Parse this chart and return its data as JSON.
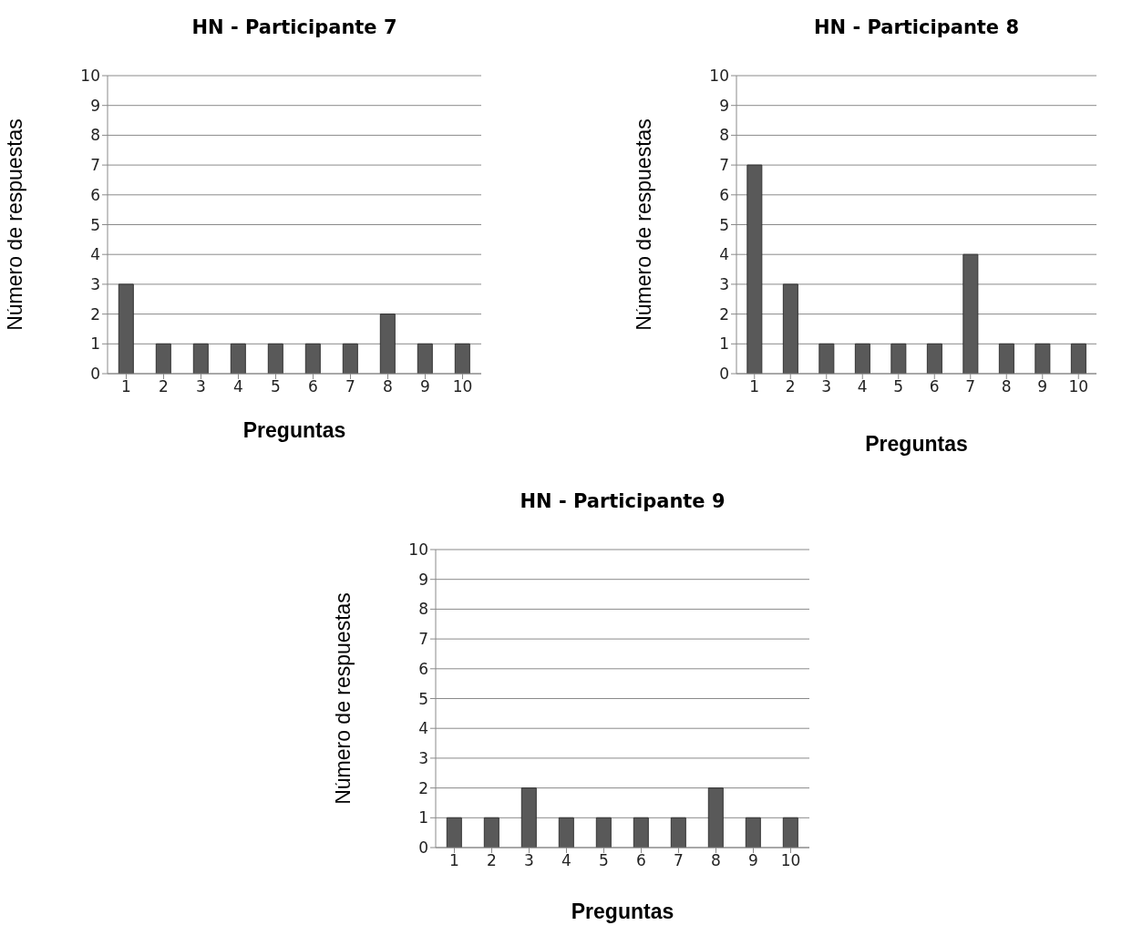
{
  "chart_data": [
    {
      "type": "bar",
      "title": "HN - Participante 7",
      "xlabel": "Preguntas",
      "ylabel": "Número de respuestas",
      "categories": [
        "1",
        "2",
        "3",
        "4",
        "5",
        "6",
        "7",
        "8",
        "9",
        "10"
      ],
      "values": [
        3,
        1,
        1,
        1,
        1,
        1,
        1,
        2,
        1,
        1
      ],
      "color": "#595959",
      "ylim": [
        0,
        10
      ],
      "yticks": [
        0,
        1,
        2,
        3,
        4,
        5,
        6,
        7,
        8,
        9,
        10
      ],
      "grid": "y"
    },
    {
      "type": "bar",
      "title": "HN - Participante 8",
      "xlabel": "Preguntas",
      "ylabel": "Número de respuestas",
      "categories": [
        "1",
        "2",
        "3",
        "4",
        "5",
        "6",
        "7",
        "8",
        "9",
        "10"
      ],
      "values": [
        7,
        3,
        1,
        1,
        1,
        1,
        4,
        1,
        1,
        1
      ],
      "color": "#595959",
      "ylim": [
        0,
        10
      ],
      "yticks": [
        0,
        1,
        2,
        3,
        4,
        5,
        6,
        7,
        8,
        9,
        10
      ],
      "grid": "y"
    },
    {
      "type": "bar",
      "title": "HN - Participante 9",
      "xlabel": "Preguntas",
      "ylabel": "Número de respuestas",
      "categories": [
        "1",
        "2",
        "3",
        "4",
        "5",
        "6",
        "7",
        "8",
        "9",
        "10"
      ],
      "values": [
        1,
        1,
        2,
        1,
        1,
        1,
        1,
        2,
        1,
        1
      ],
      "color": "#595959",
      "ylim": [
        0,
        10
      ],
      "yticks": [
        0,
        1,
        2,
        3,
        4,
        5,
        6,
        7,
        8,
        9,
        10
      ],
      "grid": "y"
    }
  ]
}
